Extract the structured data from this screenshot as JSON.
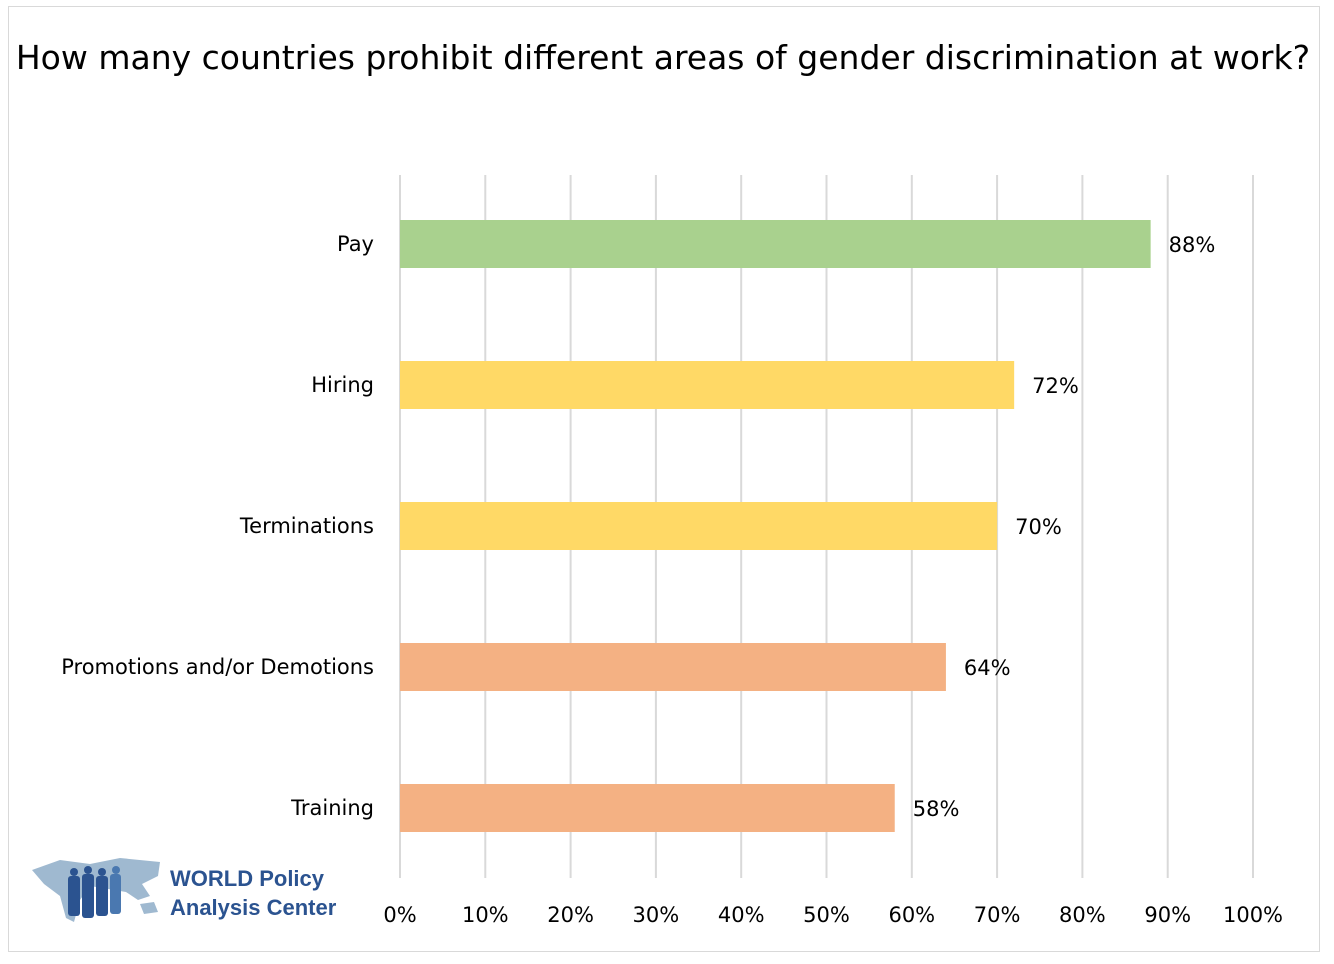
{
  "chart_data": {
    "type": "bar",
    "orientation": "horizontal",
    "title": "How many countries prohibit different areas of gender discrimination at work?",
    "categories": [
      "Pay",
      "Hiring",
      "Terminations",
      "Promotions and/or Demotions",
      "Training"
    ],
    "values": [
      88,
      72,
      70,
      64,
      58
    ],
    "data_labels": [
      "88%",
      "72%",
      "70%",
      "64%",
      "58%"
    ],
    "bar_colors": [
      "#a9d18e",
      "#ffd966",
      "#ffd966",
      "#f4b183",
      "#f4b183"
    ],
    "xlim": [
      0,
      100
    ],
    "x_ticks": [
      0,
      10,
      20,
      30,
      40,
      50,
      60,
      70,
      80,
      90,
      100
    ],
    "x_tick_labels": [
      "0%",
      "10%",
      "20%",
      "30%",
      "40%",
      "50%",
      "60%",
      "70%",
      "80%",
      "90%",
      "100%"
    ],
    "grid": "vertical",
    "legend": "none"
  },
  "logo": {
    "line1": "WORLD Policy",
    "line2": "Analysis Center",
    "color": "#2b5390"
  }
}
